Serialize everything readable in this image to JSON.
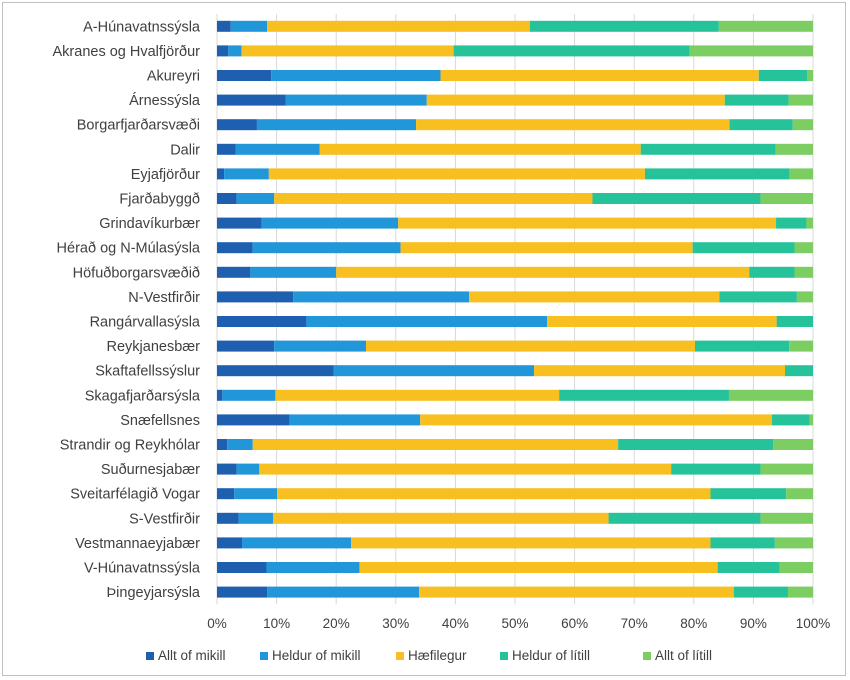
{
  "chart_data": {
    "type": "bar",
    "orientation": "horizontal",
    "stacked": "percent",
    "title": "",
    "xlabel": "",
    "ylabel": "",
    "xlim": [
      0,
      100
    ],
    "xticks": [
      "0%",
      "10%",
      "20%",
      "30%",
      "40%",
      "50%",
      "60%",
      "70%",
      "80%",
      "90%",
      "100%"
    ],
    "grid": true,
    "legend_position": "bottom",
    "categories": [
      "A-Húnavatnssýsla",
      "Akranes og Hvalfjörður",
      "Akureyri",
      "Árnessýsla",
      "Borgarfjarðarsvæði",
      "Dalir",
      "Eyjafjörður",
      "Fjarðabyggð",
      "Grindavíkurbær",
      "Hérað og N-Múlasýsla",
      "Höfuðborgarsvæðið",
      "N-Vestfirðir",
      "Rangárvallasýsla",
      "Reykjanesbær",
      "Skaftafellssýslur",
      "Skagafjarðarsýsla",
      "Snæfellsnes",
      "Strandir og Reykhólar",
      "Suðurnesjabær",
      "Sveitarfélagið Vogar",
      "S-Vestfirðir",
      "Vestmannaeyjabær",
      "V-Húnavatnssýsla",
      "Þingeyjarsýsla"
    ],
    "series": [
      {
        "name": "Allt of mikill",
        "color": "#1f5fb0",
        "values": [
          2.3,
          1.9,
          9.1,
          11.5,
          6.7,
          3.1,
          1.2,
          3.3,
          7.5,
          6.0,
          5.6,
          12.8,
          15.0,
          9.6,
          19.6,
          0.9,
          12.2,
          1.7,
          3.3,
          2.9,
          3.6,
          4.2,
          8.3,
          8.4
        ]
      },
      {
        "name": "Heldur of mikill",
        "color": "#2196d8",
        "values": [
          6.1,
          2.2,
          28.4,
          23.7,
          26.7,
          14.1,
          7.5,
          6.3,
          22.9,
          24.8,
          14.4,
          29.5,
          40.4,
          15.4,
          33.6,
          8.9,
          21.9,
          4.3,
          3.8,
          7.2,
          5.8,
          18.3,
          15.6,
          25.5
        ]
      },
      {
        "name": "Hæfilegur",
        "color": "#f7bf1f",
        "values": [
          44.1,
          35.6,
          53.4,
          50.0,
          52.6,
          53.9,
          63.1,
          53.4,
          63.4,
          49.0,
          69.3,
          42.0,
          38.5,
          55.2,
          42.1,
          47.6,
          59.0,
          61.3,
          69.1,
          72.7,
          56.3,
          60.3,
          60.1,
          52.8
        ]
      },
      {
        "name": "Heldur of lítill",
        "color": "#26c39a",
        "values": [
          31.7,
          39.6,
          8.1,
          10.7,
          10.6,
          22.6,
          24.3,
          28.2,
          5.1,
          17.1,
          7.6,
          13.0,
          6.1,
          15.8,
          4.7,
          28.5,
          6.3,
          26.0,
          15.0,
          12.7,
          25.5,
          10.8,
          10.4,
          9.1
        ]
      },
      {
        "name": "Allt of lítill",
        "color": "#7ccd62",
        "values": [
          15.8,
          20.7,
          1.0,
          4.1,
          3.4,
          6.3,
          3.9,
          8.8,
          1.1,
          3.1,
          3.1,
          2.7,
          0.0,
          4.0,
          0.0,
          14.1,
          0.6,
          6.7,
          8.8,
          4.5,
          8.8,
          6.4,
          5.6,
          4.2
        ]
      }
    ]
  }
}
